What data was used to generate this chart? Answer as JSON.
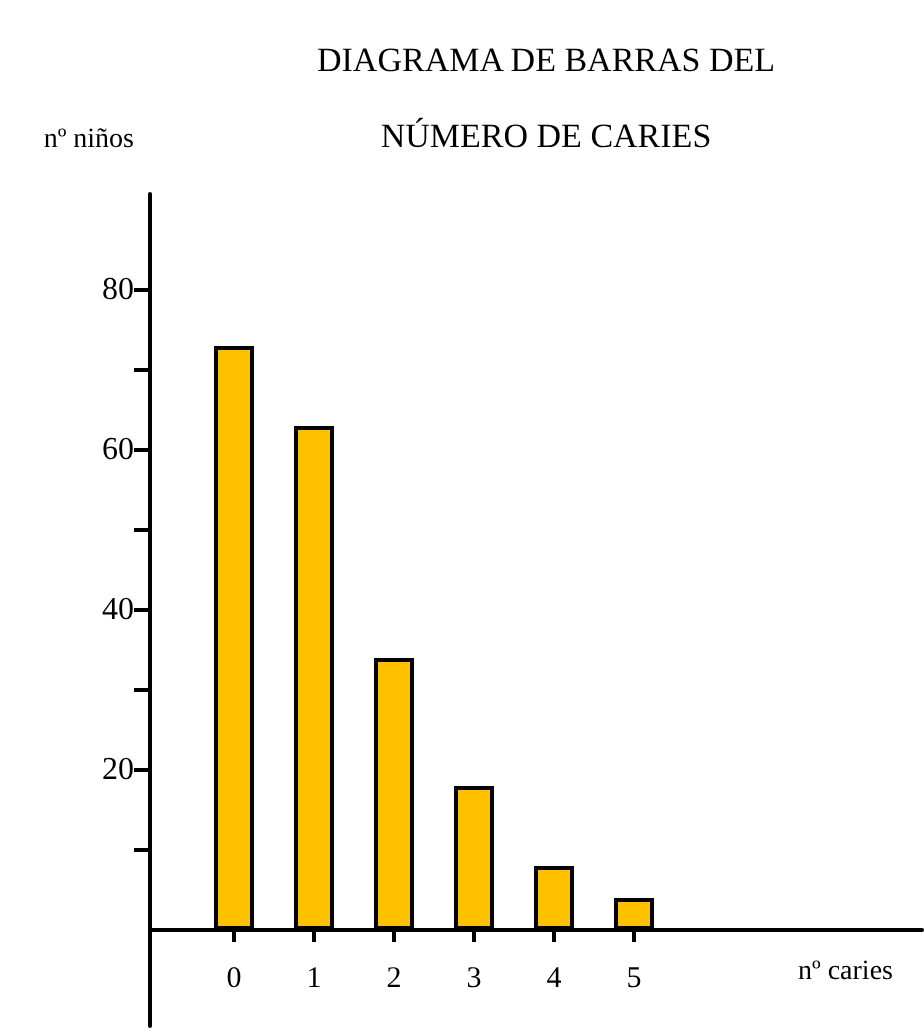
{
  "chart_data": {
    "type": "bar",
    "title": "DIAGRAMA DE BARRAS DEL\nNÚMERO DE CARIES",
    "ylabel": "nº niños",
    "xlabel": "nº caries",
    "x": [
      0,
      1,
      2,
      3,
      4,
      5
    ],
    "values": [
      73,
      63,
      34,
      18,
      8,
      4
    ],
    "color": "#ffc000",
    "xlim": [
      -1.05,
      8.6
    ],
    "xticks": [
      0,
      1,
      2,
      3,
      4,
      5
    ],
    "ylim": [
      -12,
      92
    ],
    "yticks": [
      {
        "value": 10,
        "label": null
      },
      20,
      {
        "value": 30,
        "label": null
      },
      40,
      {
        "value": 50,
        "label": null
      },
      60,
      {
        "value": 70,
        "label": null
      },
      80
    ],
    "grid": false
  }
}
